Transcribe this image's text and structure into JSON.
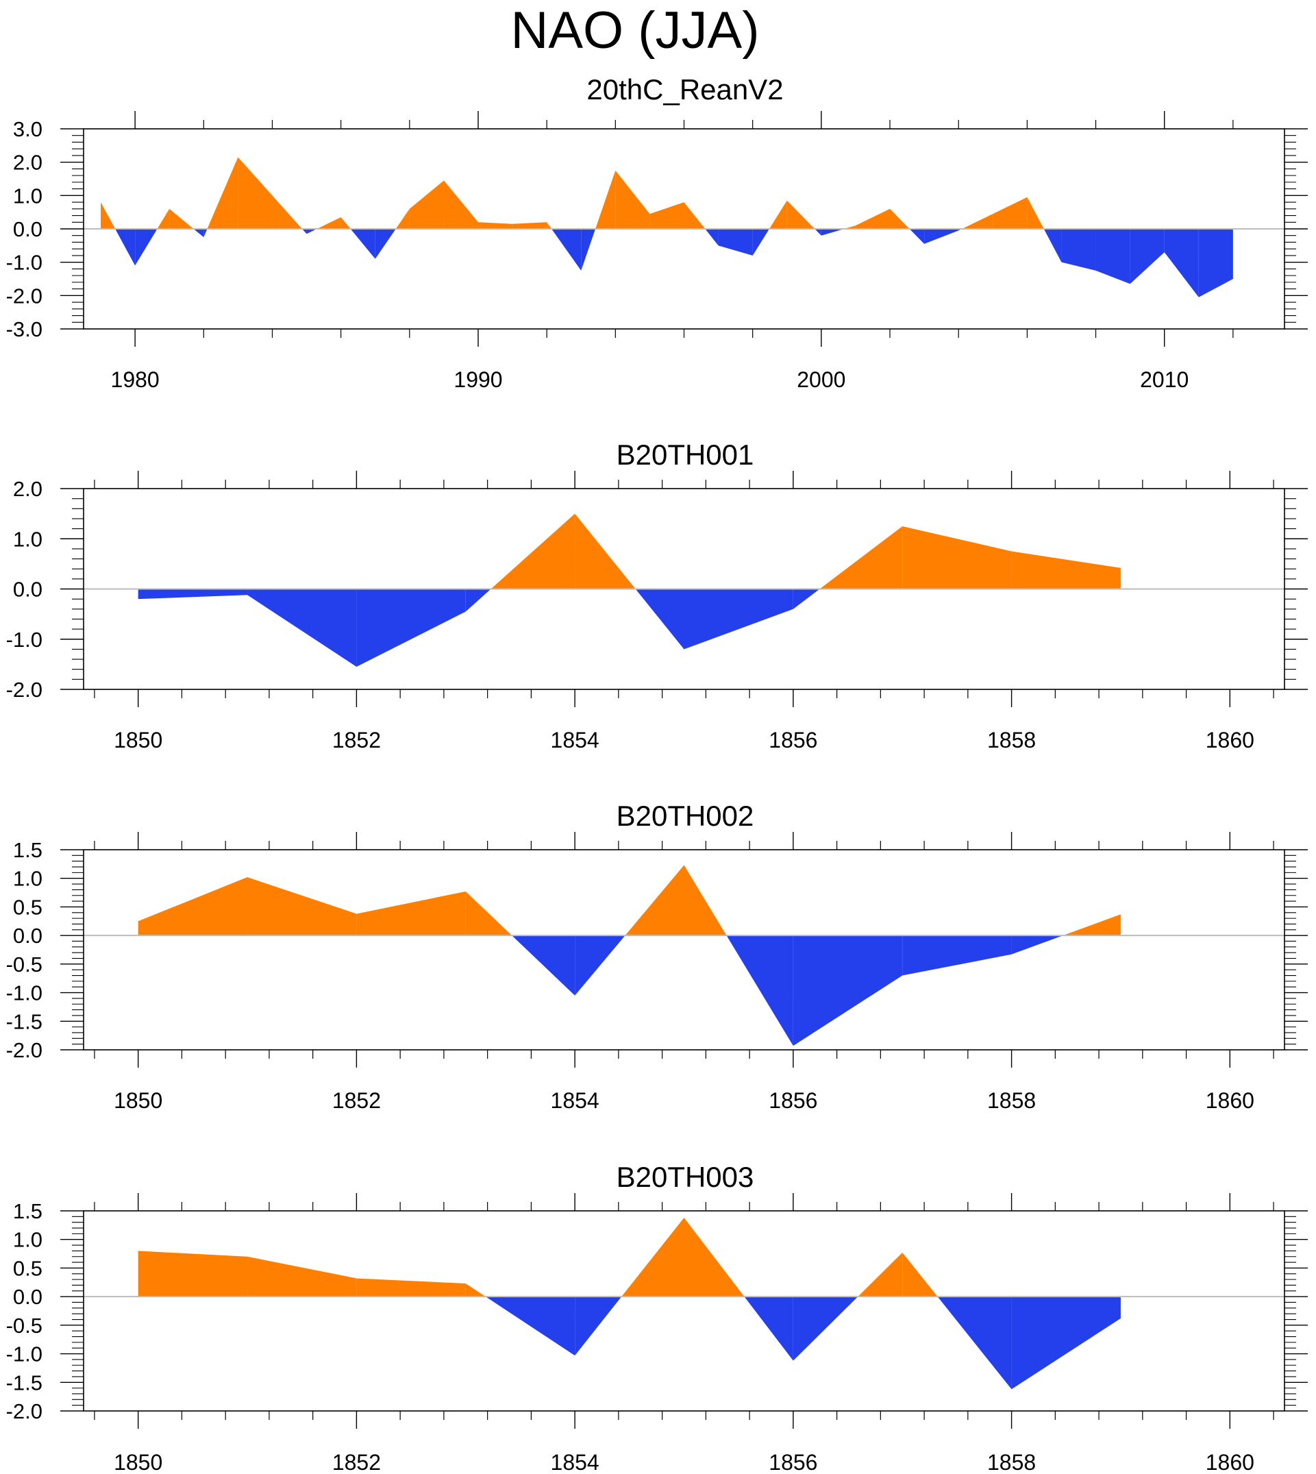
{
  "title": "NAO (JJA)",
  "colors": {
    "positive": "#ff8000",
    "negative": "#2440ec",
    "zero_line": "#bdbdbd",
    "axis": "#000000"
  },
  "chart_data": [
    {
      "type": "area",
      "title": "20thC_ReanV2",
      "xlabel": "",
      "ylabel": "",
      "xlim": [
        1978.5,
        2013.5
      ],
      "ylim": [
        -3.0,
        3.0
      ],
      "xticks": [
        1980,
        1990,
        2000,
        2010
      ],
      "xtick_labels": [
        "1980",
        "1990",
        "2000",
        "2010"
      ],
      "yticks": [
        3.0,
        2.0,
        1.0,
        0.0,
        -1.0,
        -2.0,
        -3.0
      ],
      "ytick_labels": [
        "3.0",
        "2.0",
        "1.0",
        "0.0",
        "-1.0",
        "-2.0",
        "-3.0"
      ],
      "x": [
        1979,
        1980,
        1981,
        1982,
        1983,
        1984,
        1985,
        1986,
        1987,
        1988,
        1989,
        1990,
        1991,
        1992,
        1993,
        1994,
        1995,
        1996,
        1997,
        1998,
        1999,
        2000,
        2001,
        2002,
        2003,
        2004,
        2005,
        2006,
        2007,
        2008,
        2009,
        2010,
        2011,
        2012
      ],
      "values": [
        0.8,
        -1.1,
        0.6,
        -0.25,
        2.15,
        1.0,
        -0.15,
        0.35,
        -0.9,
        0.6,
        1.45,
        0.2,
        0.15,
        0.2,
        -1.25,
        1.75,
        0.45,
        0.8,
        -0.5,
        -0.8,
        0.85,
        -0.2,
        0.1,
        0.6,
        -0.45,
        -0.05,
        0.45,
        0.95,
        -1.0,
        -1.25,
        -1.65,
        -0.7,
        -2.05,
        -1.5
      ]
    },
    {
      "type": "area",
      "title": "B20TH001",
      "xlabel": "",
      "ylabel": "",
      "xlim": [
        1849.5,
        1860.5
      ],
      "ylim": [
        -2.0,
        2.0
      ],
      "xticks": [
        1850,
        1852,
        1854,
        1856,
        1858,
        1860
      ],
      "xtick_labels": [
        "1850",
        "1852",
        "1854",
        "1856",
        "1858",
        "1860"
      ],
      "yticks": [
        2.0,
        1.0,
        0.0,
        -1.0,
        -2.0
      ],
      "ytick_labels": [
        "2.0",
        "1.0",
        "0.0",
        "-1.0",
        "-2.0"
      ],
      "x": [
        1850,
        1851,
        1852,
        1853,
        1854,
        1855,
        1856,
        1857,
        1858,
        1859
      ],
      "values": [
        -0.2,
        -0.12,
        -1.55,
        -0.45,
        1.5,
        -1.2,
        -0.4,
        1.25,
        0.75,
        0.42
      ]
    },
    {
      "type": "area",
      "title": "B20TH002",
      "xlabel": "",
      "ylabel": "",
      "xlim": [
        1849.5,
        1860.5
      ],
      "ylim": [
        -2.0,
        1.5
      ],
      "xticks": [
        1850,
        1852,
        1854,
        1856,
        1858,
        1860
      ],
      "xtick_labels": [
        "1850",
        "1852",
        "1854",
        "1856",
        "1858",
        "1860"
      ],
      "yticks": [
        1.5,
        1.0,
        0.5,
        0.0,
        -0.5,
        -1.0,
        -1.5,
        -2.0
      ],
      "ytick_labels": [
        "1.5",
        "1.0",
        "0.5",
        "0.0",
        "-0.5",
        "-1.0",
        "-1.5",
        "-2.0"
      ],
      "x": [
        1850,
        1851,
        1852,
        1853,
        1854,
        1855,
        1856,
        1857,
        1858,
        1859
      ],
      "values": [
        0.25,
        1.02,
        0.38,
        0.77,
        -1.05,
        1.23,
        -1.93,
        -0.7,
        -0.33,
        0.37
      ]
    },
    {
      "type": "area",
      "title": "B20TH003",
      "xlabel": "",
      "ylabel": "",
      "xlim": [
        1849.5,
        1860.5
      ],
      "ylim": [
        -2.0,
        1.5
      ],
      "xticks": [
        1850,
        1852,
        1854,
        1856,
        1858,
        1860
      ],
      "xtick_labels": [
        "1850",
        "1852",
        "1854",
        "1856",
        "1858",
        "1860"
      ],
      "yticks": [
        1.5,
        1.0,
        0.5,
        0.0,
        -0.5,
        -1.0,
        -1.5,
        -2.0
      ],
      "ytick_labels": [
        "1.5",
        "1.0",
        "0.5",
        "0.0",
        "-0.5",
        "-1.0",
        "-1.5",
        "-2.0"
      ],
      "x": [
        1850,
        1851,
        1852,
        1853,
        1854,
        1855,
        1856,
        1857,
        1858,
        1859
      ],
      "values": [
        0.8,
        0.7,
        0.32,
        0.23,
        -1.03,
        1.38,
        -1.12,
        0.77,
        -1.62,
        -0.38
      ]
    }
  ]
}
